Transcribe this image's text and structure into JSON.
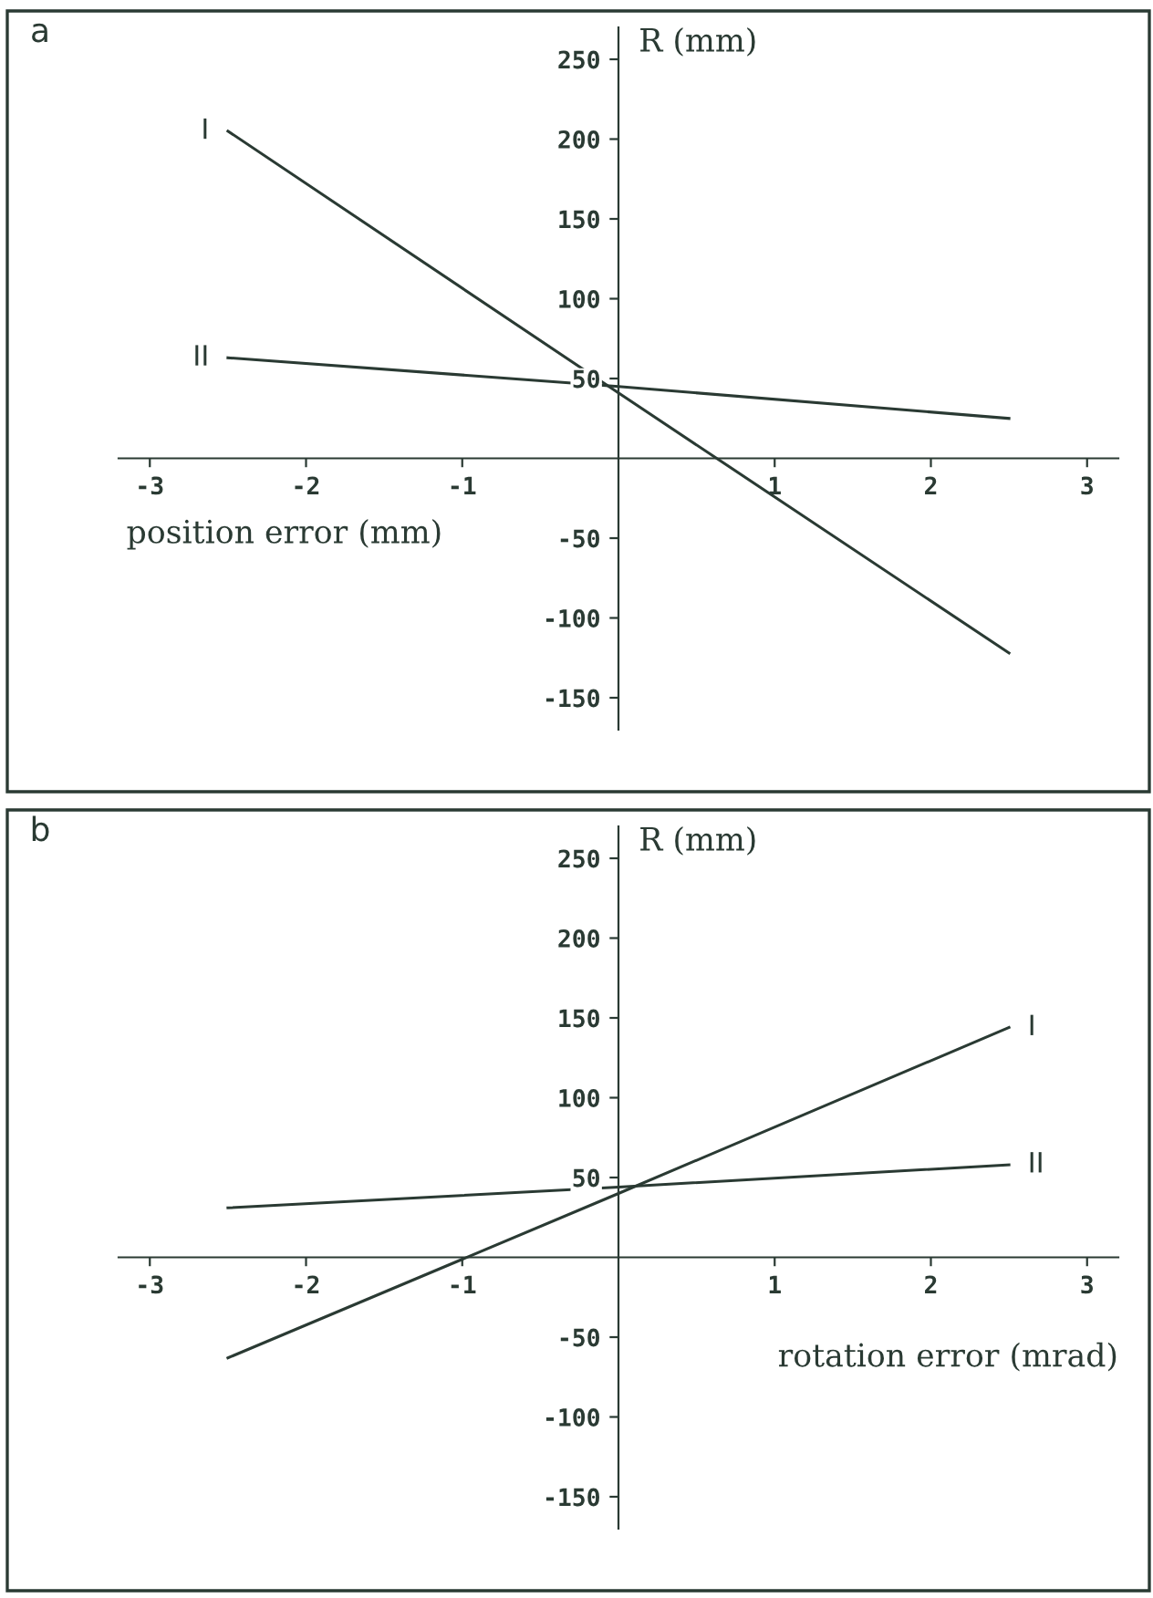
{
  "chart_data": [
    {
      "type": "line",
      "title": "a",
      "xlabel": "position error (mm)",
      "ylabel": "R (mm)",
      "x": [
        -2.5,
        0,
        2.5
      ],
      "series": [
        {
          "name": "I",
          "color": "#2a3a33",
          "values": [
            205,
            41,
            -122
          ]
        },
        {
          "name": "II",
          "color": "#2a3a33",
          "values": [
            63,
            45,
            25
          ]
        }
      ],
      "xlim": [
        -3.2,
        3.2
      ],
      "ylim": [
        -170,
        270
      ],
      "xticks": [
        -3,
        -2,
        -1,
        1,
        2,
        3
      ],
      "yticks": [
        -150,
        -100,
        -50,
        50,
        100,
        150,
        200,
        250
      ],
      "grid": false,
      "legend": false
    },
    {
      "type": "line",
      "title": "b",
      "xlabel": "rotation error (mrad)",
      "ylabel": "R (mm)",
      "x": [
        -2.5,
        0,
        2.5
      ],
      "series": [
        {
          "name": "I",
          "color": "#2a3a33",
          "values": [
            -63,
            40,
            144
          ]
        },
        {
          "name": "II",
          "color": "#2a3a33",
          "values": [
            31,
            44,
            58
          ]
        }
      ],
      "xlim": [
        -3.2,
        3.2
      ],
      "ylim": [
        -170,
        270
      ],
      "xticks": [
        -3,
        -2,
        -1,
        1,
        2,
        3
      ],
      "yticks": [
        -150,
        -100,
        -50,
        50,
        100,
        150,
        200,
        250
      ],
      "grid": false,
      "legend": false
    }
  ]
}
